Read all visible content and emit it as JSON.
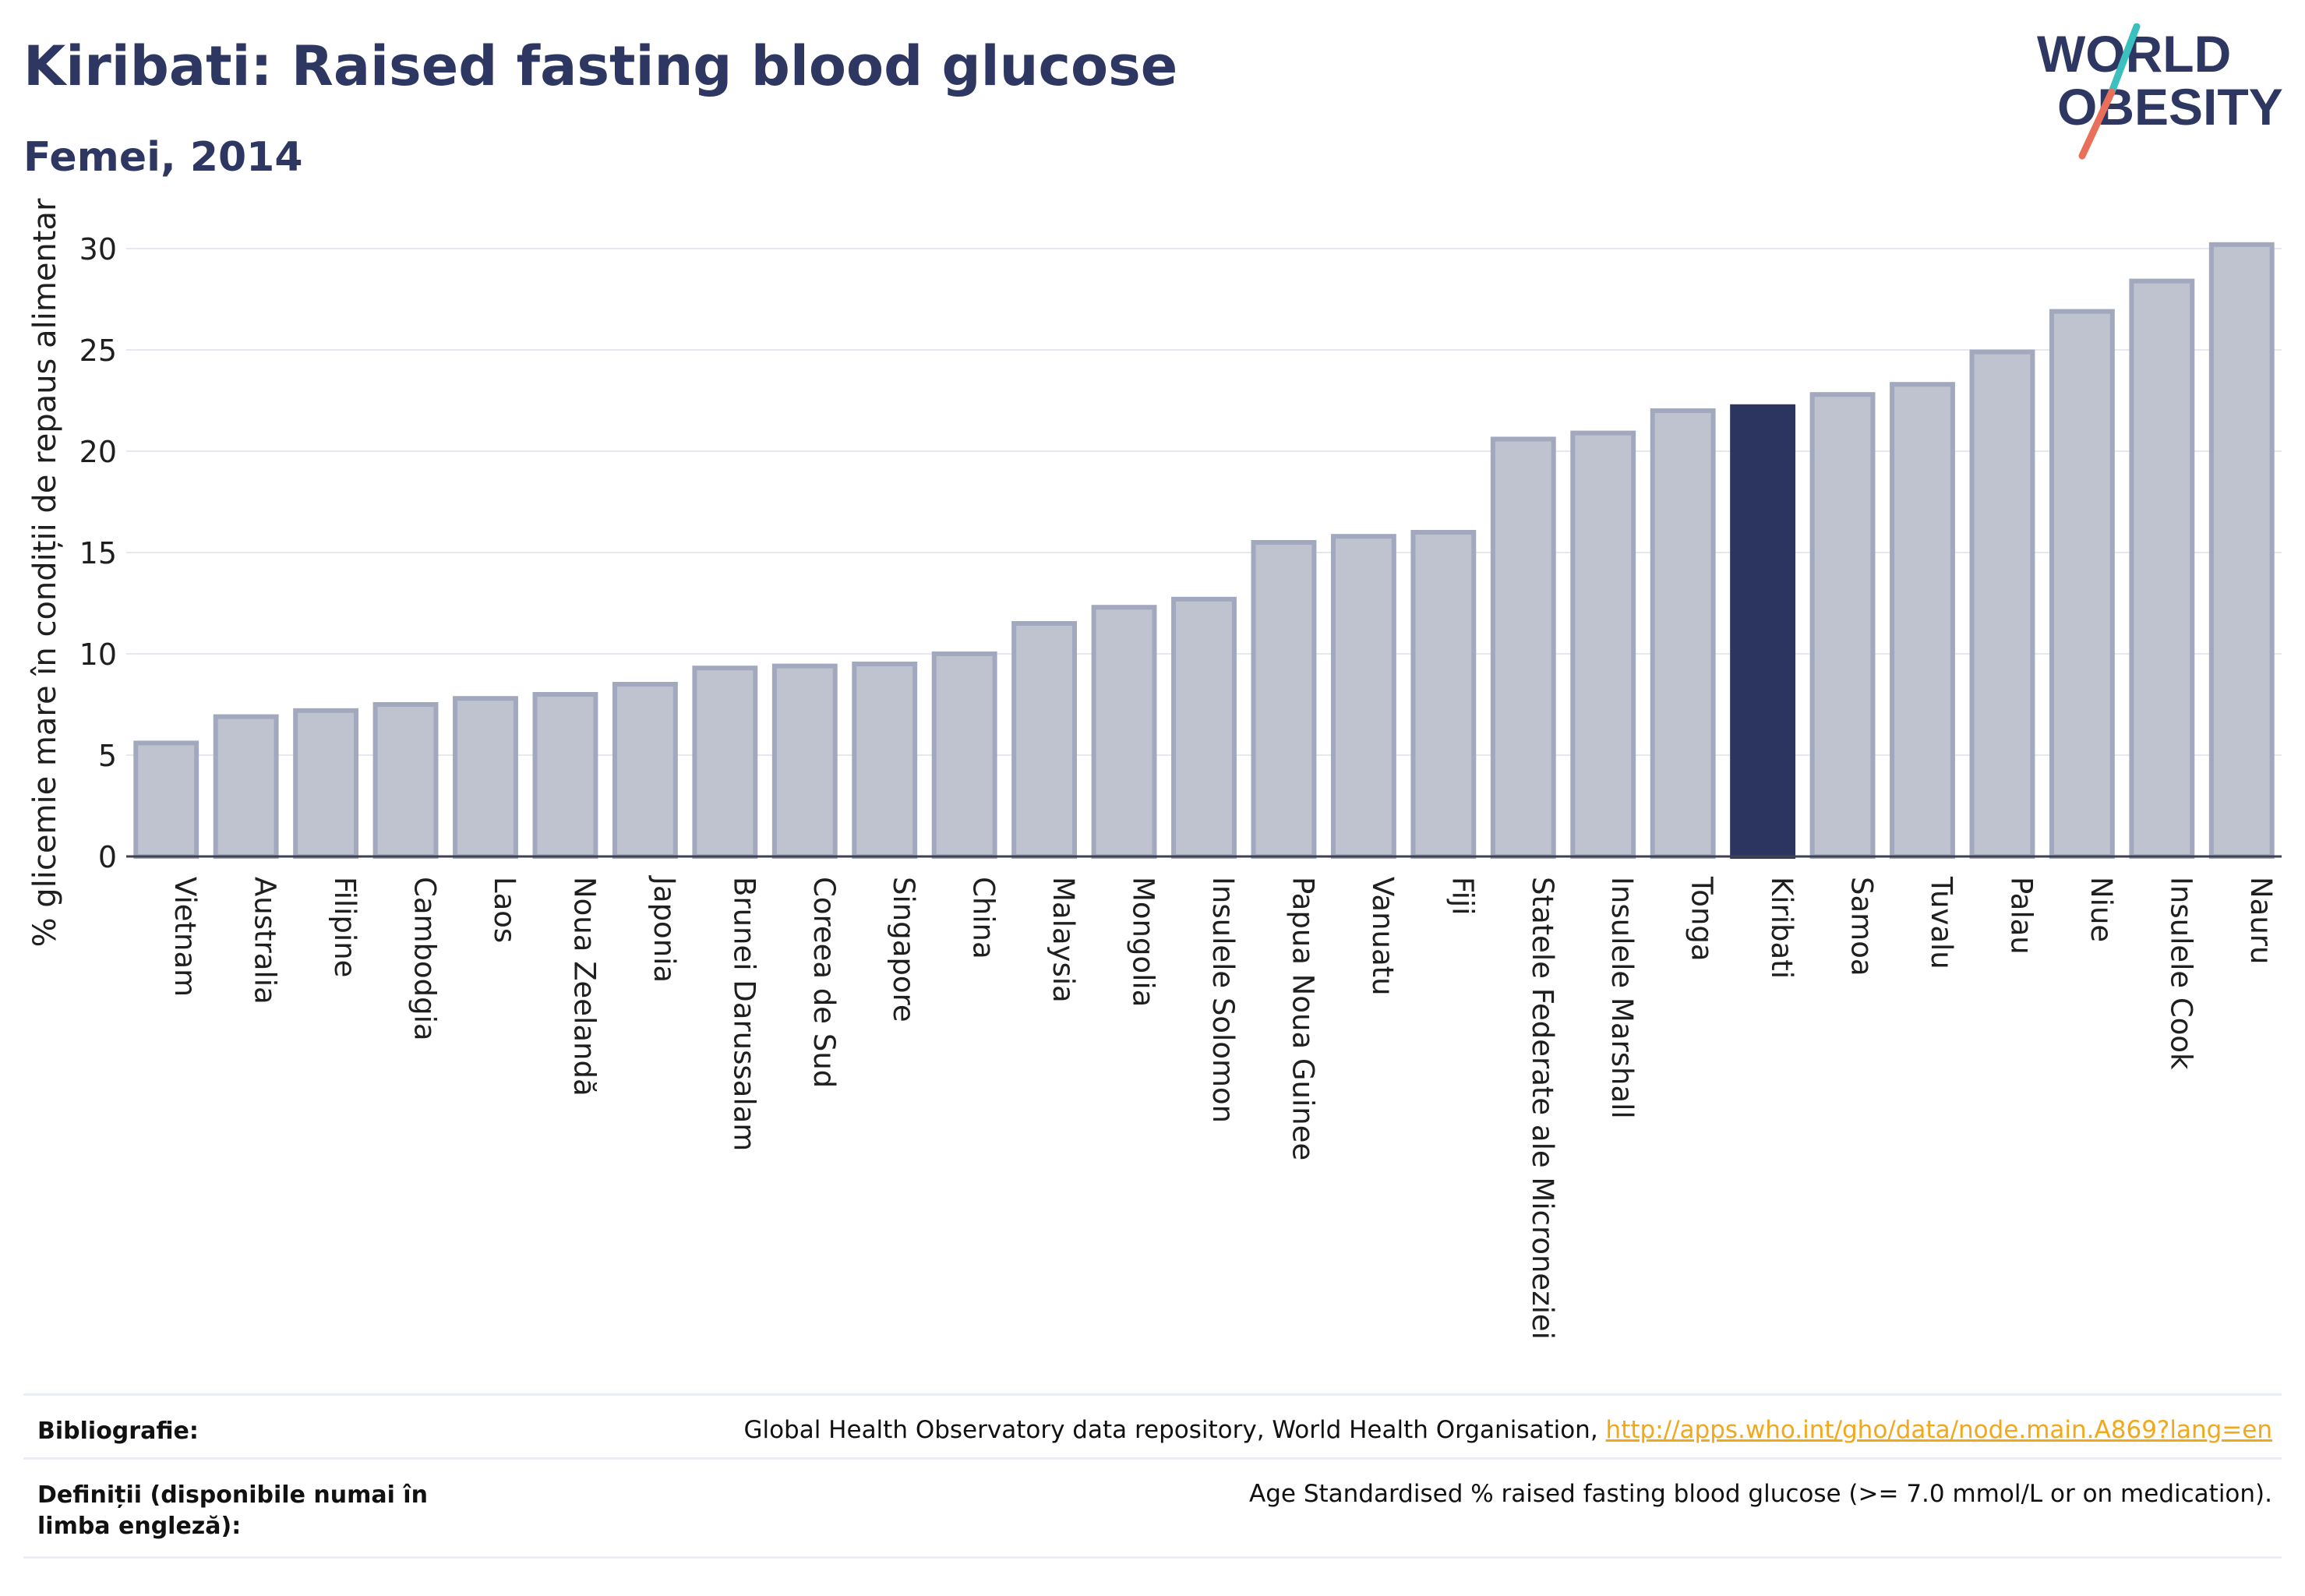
{
  "title": "Kiribati: Raised fasting blood glucose",
  "subtitle": "Femei, 2014",
  "logo": {
    "line1": "WORLD",
    "line2": "OBESITY"
  },
  "chart_data": {
    "type": "bar",
    "ylabel": "% glicemie mare în condiții de repaus alimentar",
    "ylim": [
      0,
      31.5
    ],
    "yticks": [
      0,
      5,
      10,
      15,
      20,
      25,
      30
    ],
    "grid": true,
    "highlight": "Kiribati",
    "colors": {
      "bar": "#bfc2cf",
      "bar_edge": "#a2a8bd",
      "highlight": "#2b3560"
    },
    "categories": [
      "Vietnam",
      "Australia",
      "Filipine",
      "Cambodgia",
      "Laos",
      "Noua Zeelandă",
      "Japonia",
      "Brunei Darussalam",
      "Coreea de Sud",
      "Singapore",
      "China",
      "Malaysia",
      "Mongolia",
      "Insulele Solomon",
      "Papua Noua Guinee",
      "Vanuatu",
      "Fiji",
      "Statele Federate ale Microneziei",
      "Insulele Marshall",
      "Tonga",
      "Kiribati",
      "Samoa",
      "Tuvalu",
      "Palau",
      "Niue",
      "Insulele Cook",
      "Nauru"
    ],
    "values": [
      5.6,
      6.9,
      7.2,
      7.5,
      7.8,
      8.0,
      8.5,
      9.3,
      9.4,
      9.5,
      10.0,
      11.5,
      12.3,
      12.7,
      15.5,
      15.8,
      16.0,
      20.6,
      20.9,
      22.0,
      22.2,
      22.8,
      23.3,
      24.9,
      26.9,
      28.4,
      30.2
    ]
  },
  "footer": {
    "bibliography_label": "Bibliografie:",
    "bibliography_text": "Global Health Observatory data repository, World Health Organisation, ",
    "bibliography_link": "http://apps.who.int/gho/data/node.main.A869?lang=en",
    "definitions_label": "Definiții (disponibile numai în limba engleză):",
    "definitions_text": "Age Standardised % raised fasting blood glucose (>= 7.0 mmol/L or on medication)."
  }
}
